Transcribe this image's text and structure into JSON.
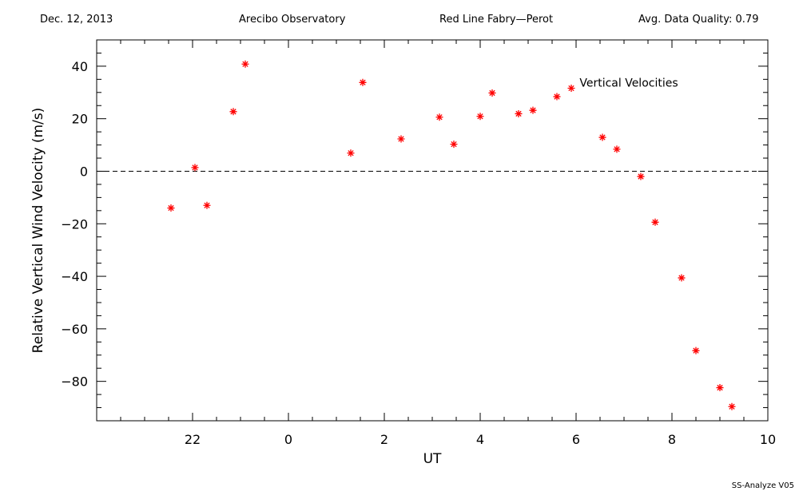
{
  "header": {
    "date": "Dec. 12, 2013",
    "site": "Arecibo Observatory",
    "instrument": "Red Line Fabry—Perot",
    "quality": "Avg. Data Quality: 0.79"
  },
  "footer": {
    "version": "SS-Analyze V05"
  },
  "colors": {
    "marker": "#ff0000",
    "axis": "#000000"
  },
  "chart_data": {
    "type": "scatter",
    "xlabel": "UT",
    "ylabel": "Relative Vertical Wind Velocity (m/s)",
    "xlim": [
      -2,
      12
    ],
    "ylim": [
      -95,
      50
    ],
    "x_ticks": [
      {
        "value": 0,
        "label": "22"
      },
      {
        "value": 2,
        "label": "0"
      },
      {
        "value": 4,
        "label": "2"
      },
      {
        "value": 6,
        "label": "4"
      },
      {
        "value": 8,
        "label": "6"
      },
      {
        "value": 10,
        "label": "8"
      },
      {
        "value": 12,
        "label": "10"
      }
    ],
    "y_ticks": [
      {
        "value": 40,
        "label": "40"
      },
      {
        "value": 20,
        "label": "20"
      },
      {
        "value": 0,
        "label": "0"
      },
      {
        "value": -20,
        "label": "−20"
      },
      {
        "value": -40,
        "label": "−40"
      },
      {
        "value": -60,
        "label": "−60"
      },
      {
        "value": -80,
        "label": "−80"
      }
    ],
    "annotations": [
      {
        "text": "Vertical Velocities",
        "x": 9.1,
        "y": 32.2
      },
      {
        "text": "Dec. 12, 2013",
        "x": 14.2,
        "y": 32.2
      }
    ],
    "zero_line": {
      "y": 0,
      "style": "dashed"
    },
    "series": [
      {
        "marker": "asterisk",
        "points": [
          {
            "x": -0.45,
            "y": -14.0
          },
          {
            "x": 0.05,
            "y": 1.4
          },
          {
            "x": 0.3,
            "y": -13.0
          },
          {
            "x": 0.85,
            "y": 22.7
          },
          {
            "x": 1.1,
            "y": 40.8
          },
          {
            "x": 3.3,
            "y": 6.9
          },
          {
            "x": 3.55,
            "y": 33.8
          },
          {
            "x": 4.35,
            "y": 12.3
          },
          {
            "x": 5.15,
            "y": 20.6
          },
          {
            "x": 5.45,
            "y": 10.3
          },
          {
            "x": 6.0,
            "y": 20.9
          },
          {
            "x": 6.25,
            "y": 29.8
          },
          {
            "x": 6.8,
            "y": 21.9
          },
          {
            "x": 7.1,
            "y": 23.2
          },
          {
            "x": 7.6,
            "y": 28.4
          },
          {
            "x": 7.9,
            "y": 31.6
          },
          {
            "x": 8.55,
            "y": 12.9
          },
          {
            "x": 8.85,
            "y": 8.4
          },
          {
            "x": 9.35,
            "y": -2.0
          },
          {
            "x": 9.65,
            "y": -19.4
          },
          {
            "x": 10.2,
            "y": -40.6
          },
          {
            "x": 10.5,
            "y": -68.3
          },
          {
            "x": 11.0,
            "y": -82.4
          },
          {
            "x": 11.25,
            "y": -89.6
          }
        ]
      }
    ]
  }
}
